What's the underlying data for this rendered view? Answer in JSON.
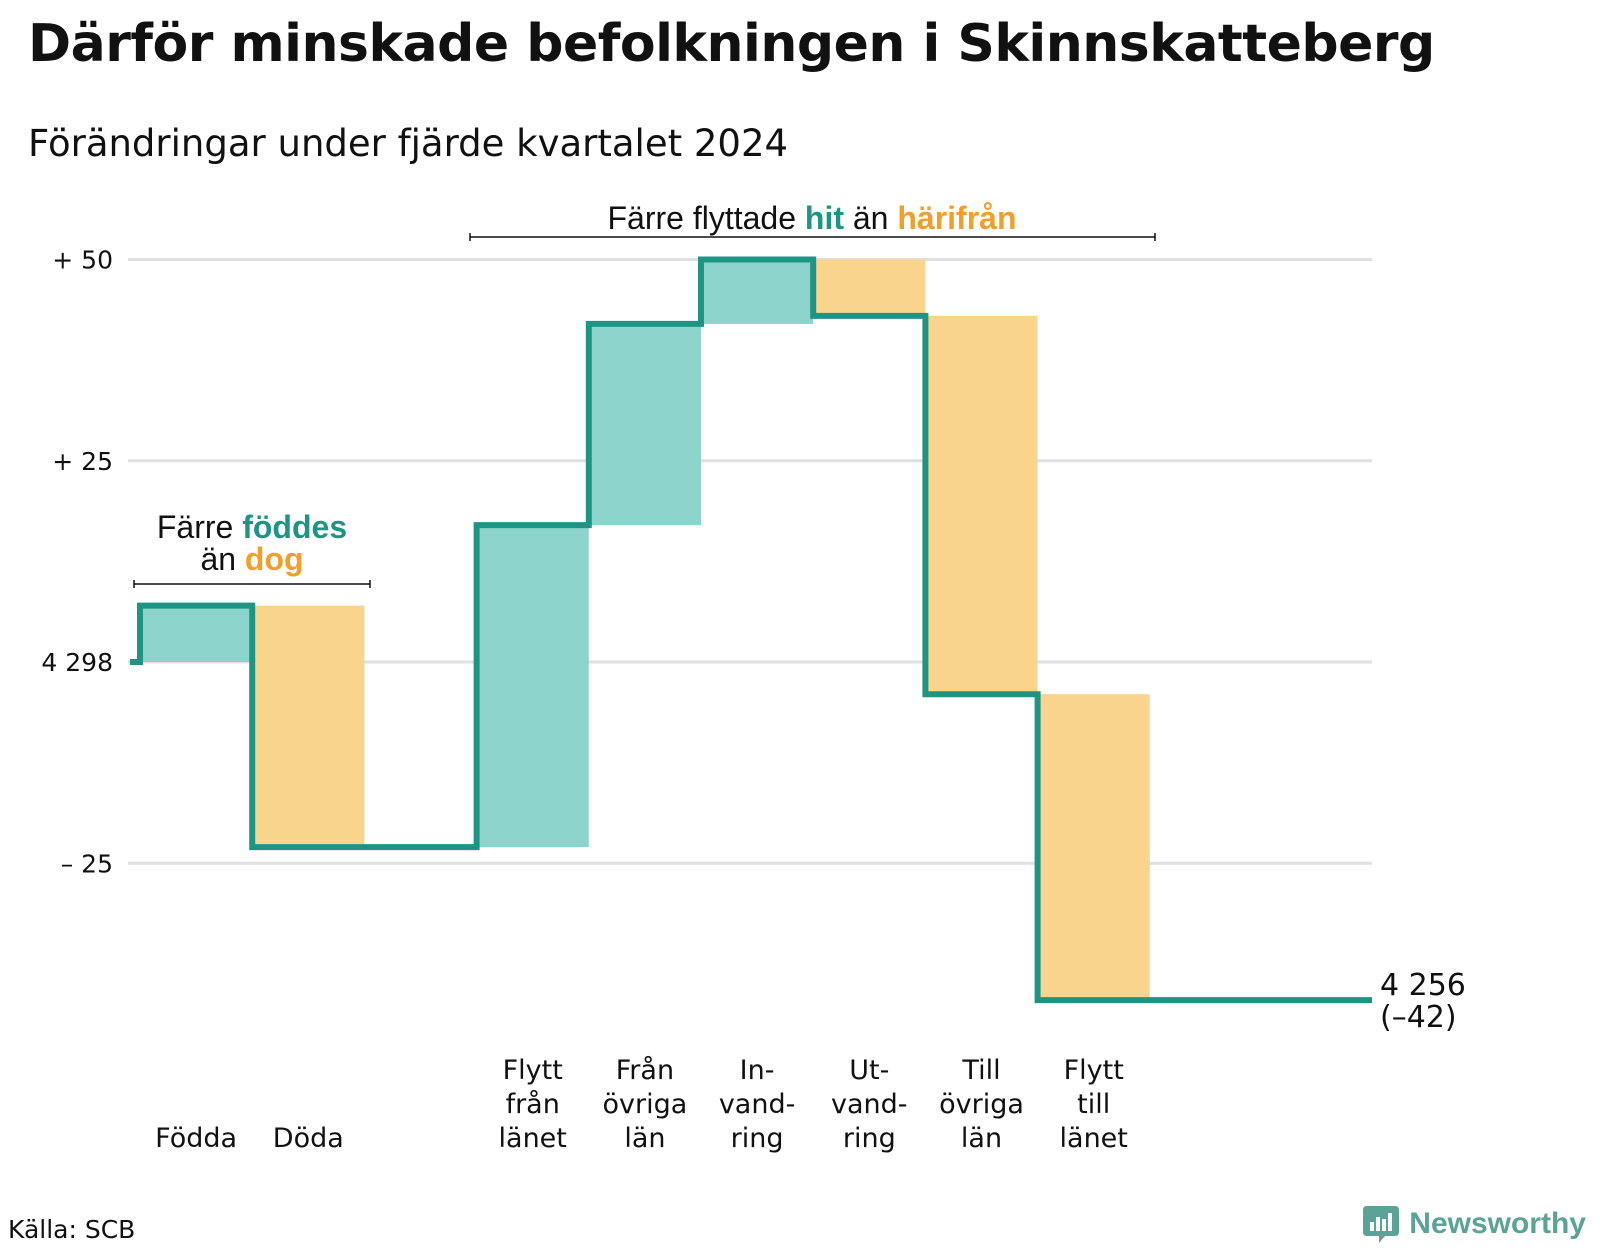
{
  "title": "Därför minskade befolkningen i Skinnskatteberg",
  "subtitle": "Förändringar under fjärde kvartalet 2024",
  "source": "Källa: SCB",
  "brand": "Newsworthy",
  "colors": {
    "line": "#1e9485",
    "increase": "#8dd4cc",
    "decrease": "#f9d48c",
    "teal_text": "#1e9485",
    "orange_text": "#f0a02a",
    "grid": "#e0e0e0"
  },
  "chart_data": {
    "type": "waterfall",
    "start_value": 4298,
    "end_value": 4256,
    "net_change": -42,
    "ylim": [
      -42,
      50
    ],
    "yticks": [
      {
        "value": 50,
        "label": "+ 50"
      },
      {
        "value": 25,
        "label": "+ 25"
      },
      {
        "value": 0,
        "label": "4 298"
      },
      {
        "value": -25,
        "label": "– 25"
      }
    ],
    "steps": [
      {
        "label": [
          "Födda"
        ],
        "value": 7,
        "kind": "increase"
      },
      {
        "label": [
          "Döda"
        ],
        "value": -30,
        "kind": "decrease"
      },
      {
        "label": [],
        "value": 0,
        "kind": "spacer"
      },
      {
        "label": [
          "Flytt",
          "från",
          "länet"
        ],
        "value": 40,
        "kind": "increase"
      },
      {
        "label": [
          "Från",
          "övriga",
          "län"
        ],
        "value": 25,
        "kind": "increase"
      },
      {
        "label": [
          "In-",
          "vand-",
          "ring"
        ],
        "value": 8,
        "kind": "increase"
      },
      {
        "label": [
          "Ut-",
          "vand-",
          "ring"
        ],
        "value": -7,
        "kind": "decrease"
      },
      {
        "label": [
          "Till",
          "övriga",
          "län"
        ],
        "value": -47,
        "kind": "decrease"
      },
      {
        "label": [
          "Flytt",
          "till",
          "länet"
        ],
        "value": -38,
        "kind": "decrease"
      }
    ],
    "end_label": [
      "4 256",
      "(–42)"
    ],
    "annotations": [
      {
        "group": "births",
        "lines": [
          [
            {
              "text": "Färre ",
              "style": "normal"
            },
            {
              "text": "föddes",
              "style": "teal"
            }
          ],
          [
            {
              "text": "än ",
              "style": "normal"
            },
            {
              "text": "dog",
              "style": "orange"
            }
          ]
        ]
      },
      {
        "group": "moves",
        "lines": [
          [
            {
              "text": "Färre flyttade ",
              "style": "normal"
            },
            {
              "text": "hit",
              "style": "teal"
            },
            {
              "text": " än ",
              "style": "normal"
            },
            {
              "text": "härifrån",
              "style": "orange"
            }
          ]
        ]
      }
    ]
  }
}
